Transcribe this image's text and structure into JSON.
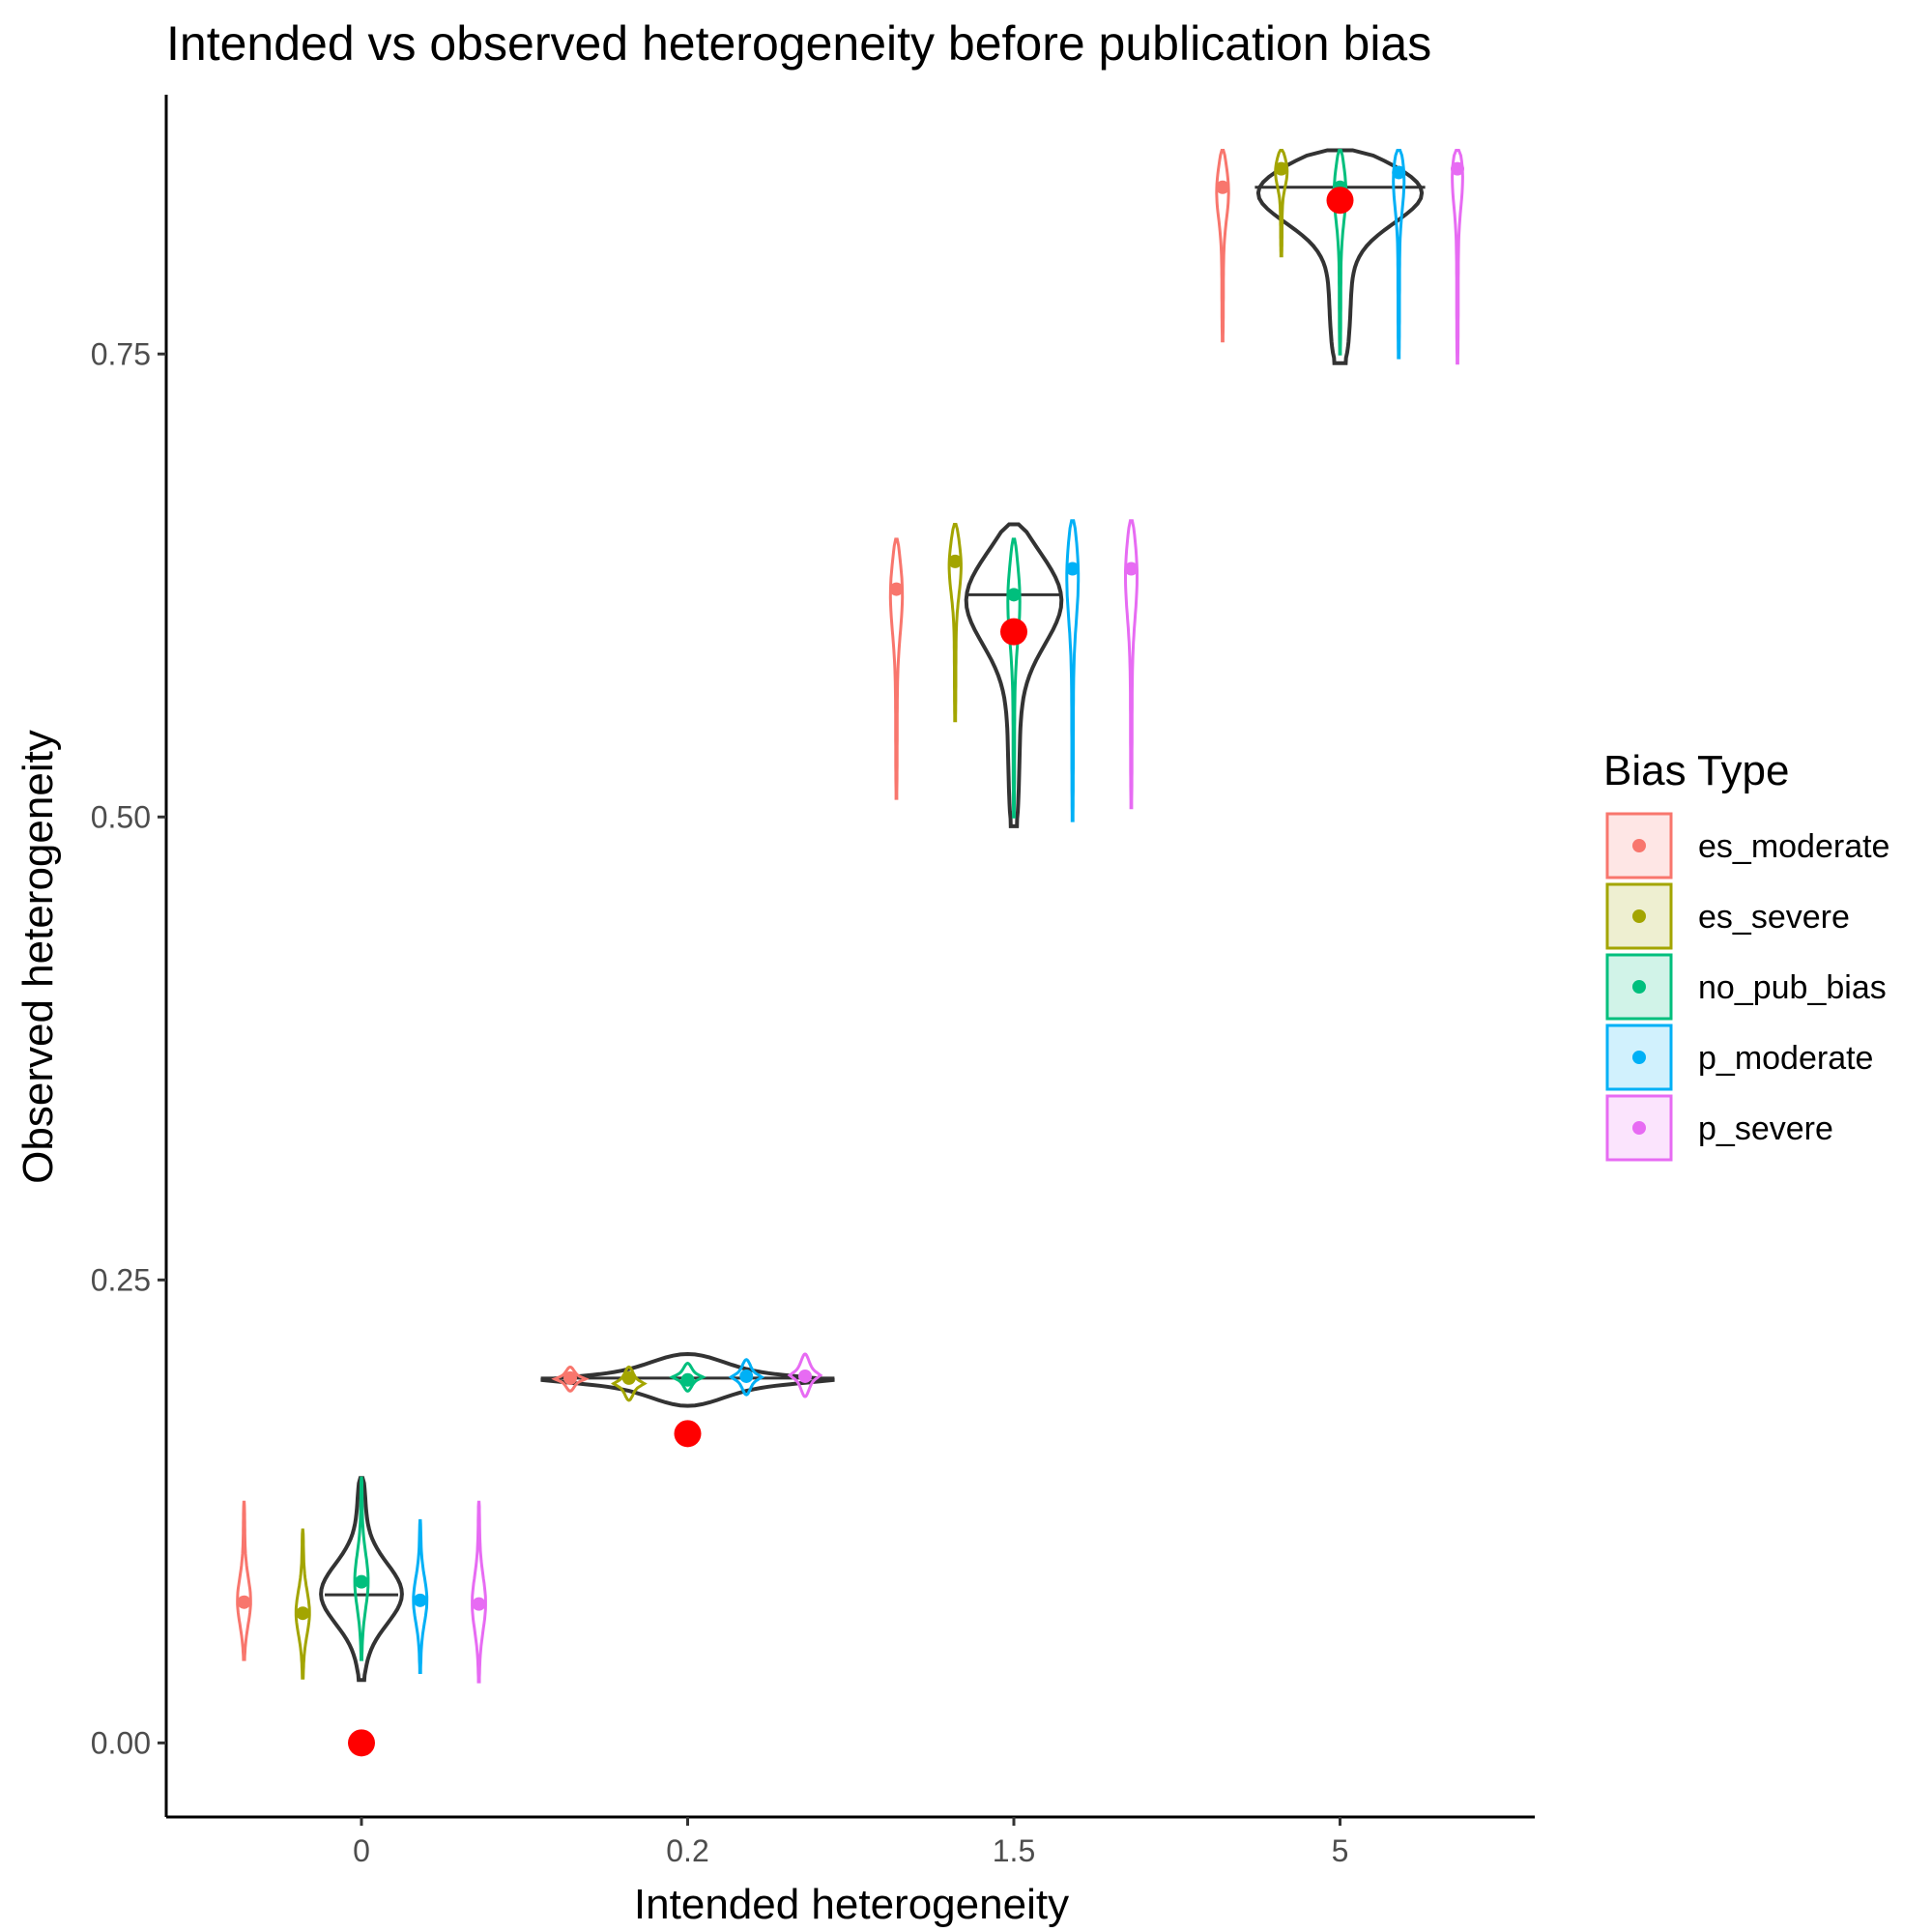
{
  "chart_data": {
    "type": "violin",
    "title": "Intended vs observed heterogeneity before publication bias",
    "xlabel": "Intended heterogeneity",
    "ylabel": "Observed heterogeneity",
    "categories": [
      "0",
      "0.2",
      "1.5",
      "5"
    ],
    "ylim": [
      -0.04,
      0.89
    ],
    "yticks": [
      0.0,
      0.25,
      0.5,
      0.75
    ],
    "ytick_labels": [
      "0.00",
      "0.25",
      "0.50",
      "0.75"
    ],
    "legend": {
      "title": "Bias Type",
      "position": "right",
      "entries": [
        "es_moderate",
        "es_severe",
        "no_pub_bias",
        "p_moderate",
        "p_severe"
      ]
    },
    "colors": {
      "es_moderate": "#F8766D",
      "es_severe": "#A3A500",
      "no_pub_bias": "#00BF7D",
      "p_moderate": "#00B0F6",
      "p_severe": "#E76BF3",
      "overall": "#333333",
      "intended": "#FF0000"
    },
    "overall_violins": [
      {
        "category": "0",
        "min": 0.034,
        "max": 0.143,
        "median": 0.08,
        "max_half_width": 0.25
      },
      {
        "category": "0.2",
        "min": 0.182,
        "max": 0.21,
        "median": 0.197,
        "max_half_width": 0.45
      },
      {
        "category": "1.5",
        "min": 0.495,
        "max": 0.658,
        "median": 0.62,
        "max_half_width": 0.32
      },
      {
        "category": "5",
        "min": 0.745,
        "max": 0.86,
        "median": 0.84,
        "max_half_width": 0.58
      }
    ],
    "series": [
      {
        "name": "es_moderate",
        "points": [
          {
            "category": "0",
            "mean": 0.076,
            "min": 0.045,
            "max": 0.13
          },
          {
            "category": "0.2",
            "mean": 0.197,
            "min": 0.19,
            "max": 0.203
          },
          {
            "category": "1.5",
            "mean": 0.623,
            "min": 0.51,
            "max": 0.65
          },
          {
            "category": "5",
            "mean": 0.84,
            "min": 0.757,
            "max": 0.86
          }
        ]
      },
      {
        "name": "es_severe",
        "points": [
          {
            "category": "0",
            "mean": 0.07,
            "min": 0.035,
            "max": 0.115
          },
          {
            "category": "0.2",
            "mean": 0.197,
            "min": 0.185,
            "max": 0.203
          },
          {
            "category": "1.5",
            "mean": 0.638,
            "min": 0.552,
            "max": 0.658
          },
          {
            "category": "5",
            "mean": 0.85,
            "min": 0.803,
            "max": 0.86
          }
        ]
      },
      {
        "name": "no_pub_bias",
        "points": [
          {
            "category": "0",
            "mean": 0.087,
            "min": 0.045,
            "max": 0.143
          },
          {
            "category": "0.2",
            "mean": 0.196,
            "min": 0.19,
            "max": 0.205
          },
          {
            "category": "1.5",
            "mean": 0.62,
            "min": 0.5,
            "max": 0.65
          },
          {
            "category": "5",
            "mean": 0.84,
            "min": 0.75,
            "max": 0.86
          }
        ]
      },
      {
        "name": "p_moderate",
        "points": [
          {
            "category": "0",
            "mean": 0.077,
            "min": 0.038,
            "max": 0.12
          },
          {
            "category": "0.2",
            "mean": 0.198,
            "min": 0.188,
            "max": 0.207
          },
          {
            "category": "1.5",
            "mean": 0.634,
            "min": 0.498,
            "max": 0.66
          },
          {
            "category": "5",
            "mean": 0.848,
            "min": 0.748,
            "max": 0.86
          }
        ]
      },
      {
        "name": "p_severe",
        "points": [
          {
            "category": "0",
            "mean": 0.075,
            "min": 0.033,
            "max": 0.13
          },
          {
            "category": "0.2",
            "mean": 0.198,
            "min": 0.187,
            "max": 0.21
          },
          {
            "category": "1.5",
            "mean": 0.634,
            "min": 0.505,
            "max": 0.66
          },
          {
            "category": "5",
            "mean": 0.85,
            "min": 0.745,
            "max": 0.86
          }
        ]
      }
    ],
    "intended_points": [
      {
        "category": "0",
        "value": 0.0
      },
      {
        "category": "0.2",
        "value": 0.167
      },
      {
        "category": "1.5",
        "value": 0.6
      },
      {
        "category": "5",
        "value": 0.833
      }
    ]
  }
}
